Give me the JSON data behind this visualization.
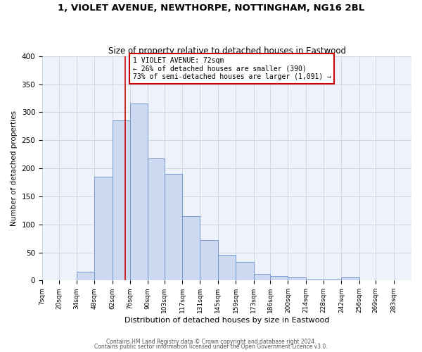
{
  "title": "1, VIOLET AVENUE, NEWTHORPE, NOTTINGHAM, NG16 2BL",
  "subtitle": "Size of property relative to detached houses in Eastwood",
  "xlabel": "Distribution of detached houses by size in Eastwood",
  "ylabel": "Number of detached properties",
  "bin_labels": [
    "7sqm",
    "20sqm",
    "34sqm",
    "48sqm",
    "62sqm",
    "76sqm",
    "90sqm",
    "103sqm",
    "117sqm",
    "131sqm",
    "145sqm",
    "159sqm",
    "173sqm",
    "186sqm",
    "200sqm",
    "214sqm",
    "228sqm",
    "242sqm",
    "256sqm",
    "269sqm",
    "283sqm"
  ],
  "bin_edges": [
    7,
    20,
    34,
    48,
    62,
    76,
    90,
    103,
    117,
    131,
    145,
    159,
    173,
    186,
    200,
    214,
    228,
    242,
    256,
    269,
    283,
    297
  ],
  "bar_heights": [
    1,
    1,
    16,
    185,
    285,
    315,
    218,
    190,
    115,
    72,
    45,
    33,
    12,
    8,
    5,
    2,
    2,
    5,
    1,
    1,
    1
  ],
  "bar_color": "#ccd9f0",
  "bar_edgecolor": "#7799cc",
  "property_size": 72,
  "vline_color": "#cc0000",
  "annotation_line1": "1 VIOLET AVENUE: 72sqm",
  "annotation_line2": "← 26% of detached houses are smaller (390)",
  "annotation_line3": "73% of semi-detached houses are larger (1,091) →",
  "annotation_box_edgecolor": "#cc0000",
  "ylim": [
    0,
    400
  ],
  "yticks": [
    0,
    50,
    100,
    150,
    200,
    250,
    300,
    350,
    400
  ],
  "grid_color": "#c8d4e8",
  "bg_color": "#eef2fa",
  "footer1": "Contains HM Land Registry data © Crown copyright and database right 2024.",
  "footer2": "Contains public sector information licensed under the Open Government Licence v3.0.",
  "title_fontsize": 9.5,
  "subtitle_fontsize": 8.5
}
